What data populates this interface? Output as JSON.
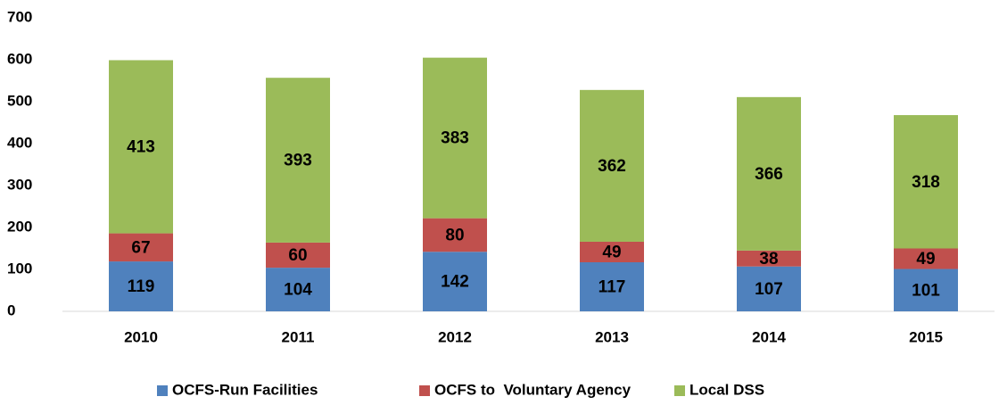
{
  "chart_data": {
    "type": "stacked_bar",
    "categories": [
      "2010",
      "2011",
      "2012",
      "2013",
      "2014",
      "2015"
    ],
    "series": [
      {
        "name": "OCFS-Run Facilities",
        "color": "#4f81bd",
        "values": [
          119,
          104,
          142,
          117,
          107,
          101
        ]
      },
      {
        "name": "OCFS to  Voluntary Agency",
        "color": "#c0504d",
        "values": [
          67,
          60,
          80,
          49,
          38,
          49
        ]
      },
      {
        "name": "Local DSS",
        "color": "#9bbb59",
        "values": [
          413,
          393,
          383,
          362,
          366,
          318
        ]
      }
    ],
    "ylim": [
      0,
      700
    ],
    "yticks": [
      0,
      100,
      200,
      300,
      400,
      500,
      600,
      700
    ],
    "grid": false,
    "legend": "bottom"
  }
}
